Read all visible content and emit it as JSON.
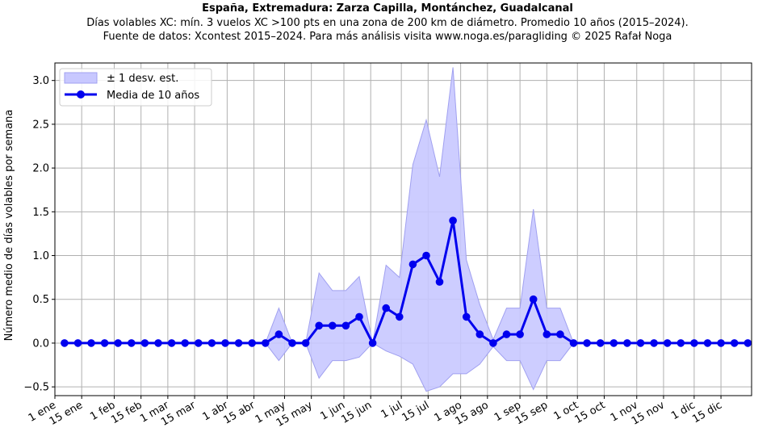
{
  "header": {
    "title": "España, Extremadura: Zarza Capilla, Montánchez, Guadalcanal",
    "subtitle1": "Días volables XC: mín. 3 vuelos XC >100 pts en una zona de 200 km de diámetro. Promedio 10 años (2015–2024).",
    "subtitle2": "Fuente de datos: Xcontest 2015–2024. Para más análisis visita www.noga.es/paragliding © 2025 Rafał Noga"
  },
  "chart_data": {
    "type": "line",
    "ylabel": "Número medio de días volables por semana",
    "xlabel": "",
    "ylim": [
      -0.6,
      3.2
    ],
    "xlim_day": [
      1,
      365
    ],
    "grid": true,
    "legend_placement": "top-left",
    "legend": {
      "band": "± 1 desv. est.",
      "line": "Media de 10 años"
    },
    "colors": {
      "line": "#0000ee",
      "band": "#c8c8ff",
      "band_edge": "#a0a0f0",
      "grid": "#b0b0b0"
    },
    "yticks": [
      -0.5,
      0.0,
      0.5,
      1.0,
      1.5,
      2.0,
      2.5,
      3.0
    ],
    "ytick_labels": [
      "−0.5",
      "0.0",
      "0.5",
      "1.0",
      "1.5",
      "2.0",
      "2.5",
      "3.0"
    ],
    "xticks": [
      {
        "day": 1,
        "label": "1 ene"
      },
      {
        "day": 15,
        "label": "15 ene"
      },
      {
        "day": 32,
        "label": "1 feb"
      },
      {
        "day": 46,
        "label": "15 feb"
      },
      {
        "day": 60,
        "label": "1 mar"
      },
      {
        "day": 74,
        "label": "15 mar"
      },
      {
        "day": 91,
        "label": "1 abr"
      },
      {
        "day": 105,
        "label": "15 abr"
      },
      {
        "day": 121,
        "label": "1 may"
      },
      {
        "day": 135,
        "label": "15 may"
      },
      {
        "day": 152,
        "label": "1 jun"
      },
      {
        "day": 166,
        "label": "15 jun"
      },
      {
        "day": 182,
        "label": "1 jul"
      },
      {
        "day": 196,
        "label": "15 jul"
      },
      {
        "day": 213,
        "label": "1 ago"
      },
      {
        "day": 227,
        "label": "15 ago"
      },
      {
        "day": 244,
        "label": "1 sep"
      },
      {
        "day": 258,
        "label": "15 sep"
      },
      {
        "day": 274,
        "label": "1 oct"
      },
      {
        "day": 288,
        "label": "15 oct"
      },
      {
        "day": 305,
        "label": "1 nov"
      },
      {
        "day": 319,
        "label": "15 nov"
      },
      {
        "day": 335,
        "label": "1 dic"
      },
      {
        "day": 349,
        "label": "15 dic"
      }
    ],
    "x_day": [
      6,
      13,
      20,
      27,
      34,
      41,
      48,
      55,
      62,
      69,
      76,
      83,
      90,
      97,
      104,
      111,
      118,
      125,
      132,
      139,
      146,
      153,
      160,
      167,
      174,
      181,
      188,
      195,
      202,
      209,
      216,
      223,
      230,
      237,
      244,
      251,
      258,
      265,
      272,
      279,
      286,
      293,
      300,
      307,
      314,
      321,
      328,
      335,
      342,
      349,
      356,
      363
    ],
    "series": [
      {
        "name": "Media de 10 años",
        "values": [
          0,
          0,
          0,
          0,
          0,
          0,
          0,
          0,
          0,
          0,
          0,
          0,
          0,
          0,
          0,
          0,
          0.1,
          0,
          0,
          0.2,
          0.2,
          0.2,
          0.3,
          0,
          0.4,
          0.3,
          0.9,
          1.0,
          0.7,
          1.4,
          0.3,
          0.1,
          0,
          0.1,
          0.1,
          0.5,
          0.1,
          0.1,
          0,
          0,
          0,
          0,
          0,
          0,
          0,
          0,
          0,
          0,
          0,
          0,
          0,
          0
        ]
      }
    ],
    "band_upper": [
      0,
      0,
      0,
      0,
      0,
      0,
      0,
      0,
      0,
      0,
      0,
      0,
      0,
      0,
      0,
      0,
      0.4,
      0,
      0,
      0.8,
      0.6,
      0.6,
      0.76,
      0,
      0.89,
      0.75,
      2.04,
      2.55,
      1.9,
      3.15,
      0.95,
      0.44,
      0.04,
      0.4,
      0.4,
      1.53,
      0.4,
      0.4,
      0,
      0,
      0,
      0,
      0,
      0,
      0,
      0,
      0,
      0,
      0,
      0,
      0,
      0
    ],
    "band_lower": [
      0,
      0,
      0,
      0,
      0,
      0,
      0,
      0,
      0,
      0,
      0,
      0,
      0,
      0,
      0,
      0,
      -0.2,
      0,
      0,
      -0.4,
      -0.2,
      -0.2,
      -0.16,
      0,
      -0.09,
      -0.15,
      -0.24,
      -0.55,
      -0.5,
      -0.35,
      -0.35,
      -0.24,
      -0.04,
      -0.2,
      -0.2,
      -0.53,
      -0.2,
      -0.2,
      0,
      0,
      0,
      0,
      0,
      0,
      0,
      0,
      0,
      0,
      0,
      0,
      0,
      0
    ]
  }
}
